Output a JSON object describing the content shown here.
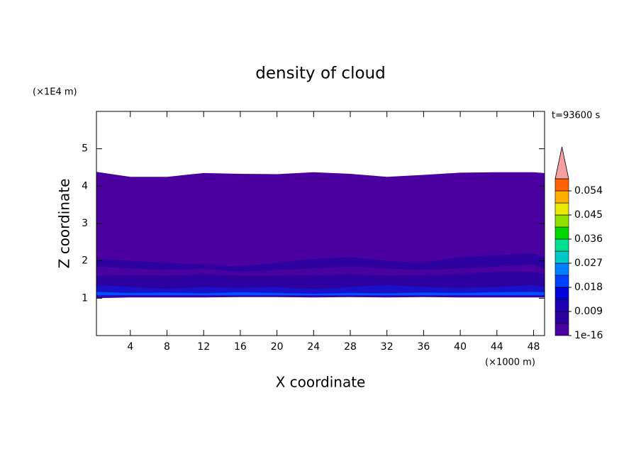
{
  "chart_data": {
    "type": "contour",
    "title": "density of cloud",
    "xlabel": "X coordinate",
    "ylabel": "Z coordinate",
    "xunit": "(×1000 m)",
    "yunit": "(×1E4 m)",
    "annotation": "t=93600 s",
    "xlim": [
      0.3,
      49.2
    ],
    "ylim": [
      0,
      6
    ],
    "xticks": [
      4,
      8,
      12,
      16,
      20,
      24,
      28,
      32,
      36,
      40,
      44,
      48
    ],
    "yticks": [
      1,
      2,
      3,
      4,
      5
    ],
    "x": [
      0.3,
      4,
      8,
      12,
      16,
      20,
      24,
      28,
      32,
      36,
      40,
      44,
      48,
      49.2
    ],
    "series": [
      {
        "color": "#4b00a0",
        "top": [
          4.38,
          4.25,
          4.25,
          4.35,
          4.33,
          4.32,
          4.37,
          4.33,
          4.25,
          4.3,
          4.36,
          4.37,
          4.37,
          4.35
        ],
        "bottom": [
          1.0,
          1.02,
          1.02,
          1.02,
          1.03,
          1.03,
          1.02,
          1.03,
          1.02,
          1.03,
          1.02,
          1.02,
          1.02,
          1.02
        ]
      },
      {
        "color": "#2d00a0",
        "top": [
          2.05,
          2.0,
          1.95,
          1.9,
          1.85,
          1.95,
          2.05,
          2.1,
          2.0,
          1.95,
          2.1,
          2.15,
          2.2,
          2.1
        ],
        "bottom": [
          1.05,
          1.05,
          1.05,
          1.05,
          1.05,
          1.05,
          1.05,
          1.05,
          1.05,
          1.05,
          1.05,
          1.05,
          1.05,
          1.05
        ]
      },
      {
        "color": "#4b00a0",
        "top": [
          1.85,
          1.8,
          1.75,
          1.8,
          1.7,
          1.75,
          1.8,
          1.85,
          1.8,
          1.75,
          1.8,
          1.85,
          1.9,
          1.8
        ],
        "bottom": [
          1.6,
          1.62,
          1.6,
          1.65,
          1.6,
          1.6,
          1.62,
          1.65,
          1.6,
          1.62,
          1.65,
          1.7,
          1.7,
          1.65
        ]
      },
      {
        "color": "#1a10c8",
        "top": [
          1.35,
          1.3,
          1.25,
          1.3,
          1.28,
          1.3,
          1.25,
          1.3,
          1.35,
          1.3,
          1.28,
          1.3,
          1.35,
          1.3
        ],
        "bottom": [
          1.05,
          1.06,
          1.06,
          1.06,
          1.06,
          1.06,
          1.06,
          1.06,
          1.06,
          1.06,
          1.06,
          1.06,
          1.06,
          1.06
        ]
      },
      {
        "color": "#0050ff",
        "top": [
          1.17,
          1.14,
          1.15,
          1.13,
          1.16,
          1.14,
          1.12,
          1.14,
          1.13,
          1.15,
          1.14,
          1.16,
          1.17,
          1.16
        ],
        "bottom": [
          1.08,
          1.08,
          1.08,
          1.08,
          1.08,
          1.08,
          1.08,
          1.08,
          1.08,
          1.08,
          1.08,
          1.08,
          1.08,
          1.08
        ]
      }
    ],
    "colorbar": {
      "clim": [
        1e-16,
        0.0585
      ],
      "levels": [
        1e-16,
        0.0045,
        0.009,
        0.0135,
        0.018,
        0.0225,
        0.027,
        0.0315,
        0.036,
        0.0405,
        0.045,
        0.0495,
        0.054
      ],
      "colors": [
        "#4b00a0",
        "#2d00a0",
        "#1e00b4",
        "#0000d8",
        "#0040ff",
        "#0080ff",
        "#00c8c8",
        "#00e090",
        "#00d800",
        "#90e000",
        "#e8e800",
        "#ffb000",
        "#ff6000"
      ],
      "extend_color": "#f4a0a0",
      "ticks": [
        1e-16,
        0.009,
        0.018,
        0.027,
        0.036,
        0.045,
        0.054
      ]
    }
  }
}
